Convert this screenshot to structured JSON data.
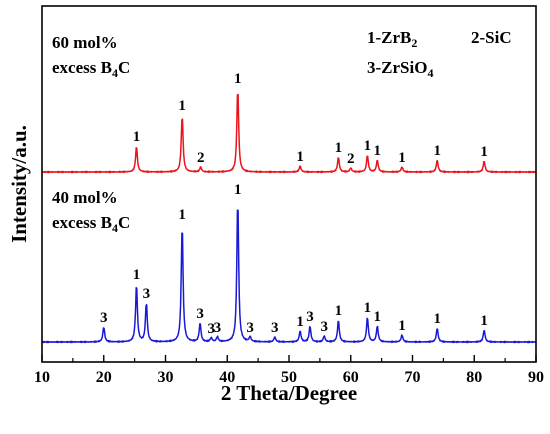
{
  "chart_data": {
    "type": "line",
    "xlabel": "2 Theta/Degree",
    "ylabel": "Intensity/a.u.",
    "xlim": [
      10,
      90
    ],
    "xticks": [
      "10",
      "20",
      "30",
      "40",
      "50",
      "60",
      "70",
      "80",
      "90"
    ],
    "grid": false,
    "legend": {
      "position": "top-right",
      "entries": [
        {
          "index": "1",
          "phase": "-ZrB",
          "sub": "2",
          "tail": ""
        },
        {
          "index": "2",
          "phase": "-SiC",
          "sub": "",
          "tail": ""
        },
        {
          "index": "3",
          "phase": "-ZrSiO",
          "sub": "4",
          "tail": ""
        }
      ]
    },
    "series": [
      {
        "label_line1": "60 mol%",
        "label_line2_pre": "excess B",
        "label_line2_sub": "4",
        "label_line2_post": "C",
        "color": "#e8151b",
        "baseline": 0.0,
        "peaks": [
          {
            "x": 25.3,
            "height": 0.26,
            "mark": "1"
          },
          {
            "x": 32.7,
            "height": 0.57,
            "mark": "1"
          },
          {
            "x": 35.7,
            "height": 0.05,
            "mark": "2"
          },
          {
            "x": 41.7,
            "height": 0.84,
            "mark": "1"
          },
          {
            "x": 51.8,
            "height": 0.06,
            "mark": "1"
          },
          {
            "x": 58.0,
            "height": 0.15,
            "mark": "1"
          },
          {
            "x": 60.0,
            "height": 0.04,
            "mark": "2"
          },
          {
            "x": 62.7,
            "height": 0.17,
            "mark": "1"
          },
          {
            "x": 64.3,
            "height": 0.12,
            "mark": "1"
          },
          {
            "x": 68.3,
            "height": 0.05,
            "mark": "1"
          },
          {
            "x": 74.0,
            "height": 0.12,
            "mark": "1"
          },
          {
            "x": 81.6,
            "height": 0.11,
            "mark": "1"
          }
        ]
      },
      {
        "label_line1": "40 mol%",
        "label_line2_pre": "excess B",
        "label_line2_sub": "4",
        "label_line2_post": "C",
        "color": "#1a1ad6",
        "baseline": 0.0,
        "peaks": [
          {
            "x": 20.0,
            "height": 0.15,
            "mark": "3"
          },
          {
            "x": 25.3,
            "height": 0.58,
            "mark": "1"
          },
          {
            "x": 26.9,
            "height": 0.39,
            "mark": "3"
          },
          {
            "x": 32.7,
            "height": 1.18,
            "mark": "1"
          },
          {
            "x": 35.6,
            "height": 0.19,
            "mark": "3"
          },
          {
            "x": 37.4,
            "height": 0.04,
            "mark": "3"
          },
          {
            "x": 38.4,
            "height": 0.05,
            "mark": "3"
          },
          {
            "x": 41.7,
            "height": 1.43,
            "mark": "1"
          },
          {
            "x": 43.7,
            "height": 0.05,
            "mark": "3"
          },
          {
            "x": 47.7,
            "height": 0.05,
            "mark": "3"
          },
          {
            "x": 51.8,
            "height": 0.11,
            "mark": "1"
          },
          {
            "x": 53.4,
            "height": 0.16,
            "mark": "3"
          },
          {
            "x": 55.7,
            "height": 0.06,
            "mark": "3"
          },
          {
            "x": 58.0,
            "height": 0.22,
            "mark": "1"
          },
          {
            "x": 62.7,
            "height": 0.25,
            "mark": "1"
          },
          {
            "x": 64.3,
            "height": 0.16,
            "mark": "1"
          },
          {
            "x": 68.3,
            "height": 0.07,
            "mark": "1"
          },
          {
            "x": 74.0,
            "height": 0.14,
            "mark": "1"
          },
          {
            "x": 81.6,
            "height": 0.12,
            "mark": "1"
          }
        ]
      }
    ]
  }
}
